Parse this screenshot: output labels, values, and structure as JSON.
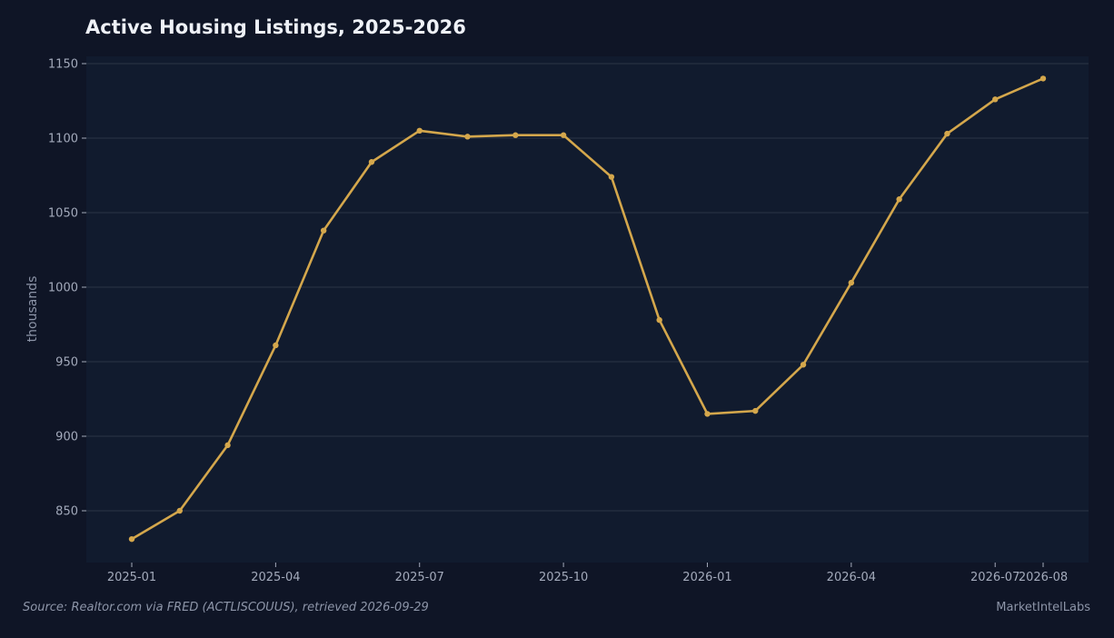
{
  "footer": {
    "source": "Source: Realtor.com via FRED (ACTLISCOUUS), retrieved 2026-09-29",
    "brand": "MarketIntelLabs"
  },
  "colors": {
    "background": "#0f1526",
    "plot_background": "#111b2e",
    "gridline": "#2a3447",
    "line": "#d4a74c"
  },
  "chart_data": {
    "type": "line",
    "title": "Active Housing Listings, 2025-2026",
    "xlabel": "",
    "ylabel": "thousands",
    "x": [
      "2025-01",
      "2025-02",
      "2025-03",
      "2025-04",
      "2025-05",
      "2025-06",
      "2025-07",
      "2025-08",
      "2025-09",
      "2025-10",
      "2025-11",
      "2025-12",
      "2026-01",
      "2026-02",
      "2026-03",
      "2026-04",
      "2026-05",
      "2026-06",
      "2026-07",
      "2026-08"
    ],
    "series": [
      {
        "values": [
          831,
          850,
          894,
          961,
          1038,
          1084,
          1105,
          1101,
          1102,
          1102,
          1074,
          978,
          915,
          917,
          948,
          1003,
          1059,
          1103,
          1126,
          1140
        ]
      }
    ],
    "x_ticks": [
      "2025-01",
      "2025-04",
      "2025-07",
      "2025-10",
      "2026-01",
      "2026-04",
      "2026-07",
      "2026-08"
    ],
    "y_ticks": [
      850,
      900,
      950,
      1000,
      1050,
      1100,
      1150
    ],
    "ylim": [
      815,
      1155
    ],
    "grid": "horizontal",
    "legend": "none"
  }
}
